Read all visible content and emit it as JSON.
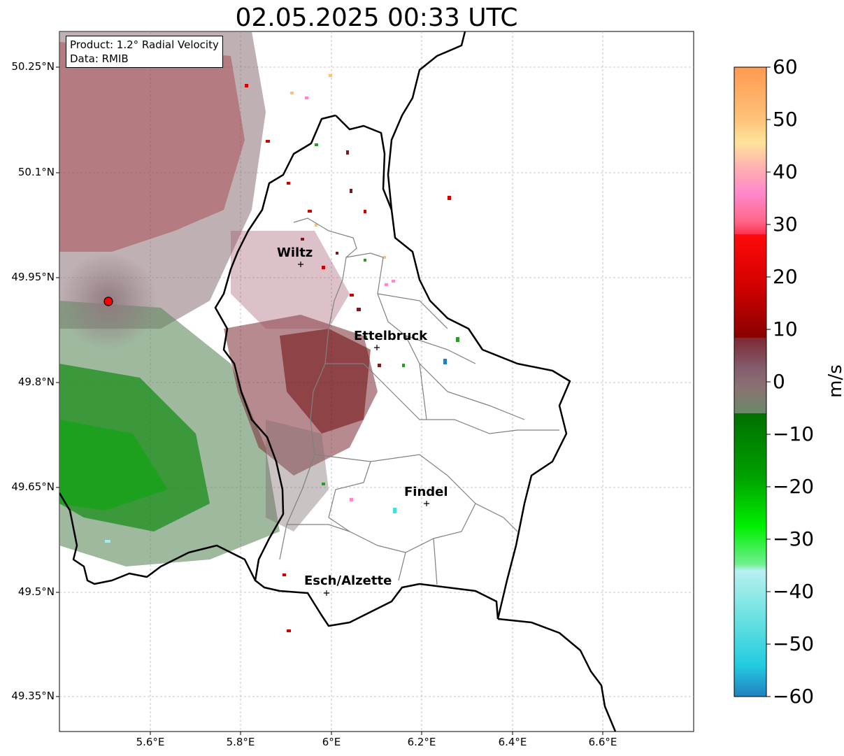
{
  "title": "02.05.2025 00:33 UTC",
  "product": {
    "line1": "Product: 1.2° Radial Velocity",
    "line2": "Data: RMIB"
  },
  "lat_ticks": [
    "50.25°N",
    "50.1°N",
    "49.95°N",
    "49.8°N",
    "49.65°N",
    "49.5°N",
    "49.35°N"
  ],
  "lon_ticks": [
    "5.6°E",
    "5.8°E",
    "6°E",
    "6.2°E",
    "6.4°E",
    "6.6°E"
  ],
  "cities": [
    {
      "name": "Wiltz"
    },
    {
      "name": "Ettelbruck"
    },
    {
      "name": "Findel"
    },
    {
      "name": "Esch/Alzette"
    }
  ],
  "colorbar": {
    "label": "m/s",
    "ticks": [
      "60",
      "50",
      "40",
      "30",
      "20",
      "10",
      "0",
      "−10",
      "−20",
      "−30",
      "−40",
      "−50",
      "−60"
    ],
    "range": [
      -60,
      60
    ]
  },
  "radar_site_color": "#ff0000"
}
